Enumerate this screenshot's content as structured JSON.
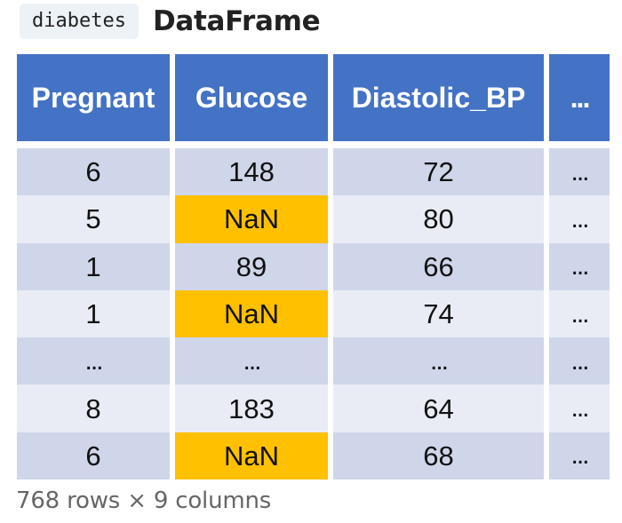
{
  "header": {
    "variable_name": "diabetes",
    "type_label": "DataFrame"
  },
  "table": {
    "columns": [
      "Pregnant",
      "Glucose",
      "Diastolic_BP",
      "..."
    ],
    "rows": [
      {
        "cells": [
          "6",
          "148",
          "72",
          "..."
        ],
        "highlight": [
          false,
          false,
          false,
          false
        ]
      },
      {
        "cells": [
          "5",
          "NaN",
          "80",
          "..."
        ],
        "highlight": [
          false,
          true,
          false,
          false
        ]
      },
      {
        "cells": [
          "1",
          "89",
          "66",
          "..."
        ],
        "highlight": [
          false,
          false,
          false,
          false
        ]
      },
      {
        "cells": [
          "1",
          "NaN",
          "74",
          "..."
        ],
        "highlight": [
          false,
          true,
          false,
          false
        ]
      },
      {
        "cells": [
          "...",
          "...",
          "...",
          "..."
        ],
        "highlight": [
          false,
          false,
          false,
          false
        ]
      },
      {
        "cells": [
          "8",
          "183",
          "64",
          "..."
        ],
        "highlight": [
          false,
          false,
          false,
          false
        ]
      },
      {
        "cells": [
          "6",
          "NaN",
          "68",
          "..."
        ],
        "highlight": [
          false,
          true,
          false,
          false
        ]
      }
    ]
  },
  "footer": {
    "summary": "768 rows × 9 columns"
  },
  "colors": {
    "header_bg": "#4472c4",
    "row_dark": "#cfd6ea",
    "row_light": "#e9ecf5",
    "nan_highlight": "#ffc000",
    "title_text": "#222222",
    "footer_text": "#666666"
  }
}
